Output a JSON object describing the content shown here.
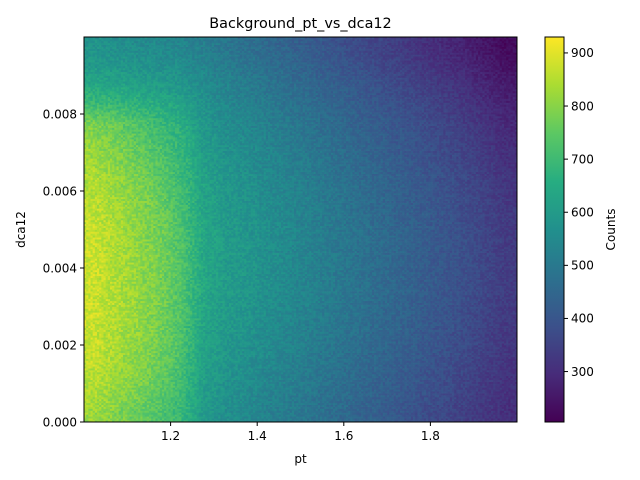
{
  "chart_data": {
    "type": "heatmap",
    "title": "Background_pt_vs_dca12",
    "xlabel": "pt",
    "ylabel": "dca12",
    "xlim": [
      1.0,
      2.0
    ],
    "ylim": [
      0.0,
      0.01
    ],
    "xticks": [
      "1.2",
      "1.4",
      "1.6",
      "1.8"
    ],
    "xtick_values": [
      1.2,
      1.4,
      1.6,
      1.8
    ],
    "yticks": [
      "0.000",
      "0.002",
      "0.004",
      "0.006",
      "0.008"
    ],
    "ytick_values": [
      0.0,
      0.002,
      0.004,
      0.006,
      0.008
    ],
    "colormap": "viridis",
    "colorbar": {
      "label": "Counts",
      "min": 205,
      "max": 930,
      "ticks": [
        "300",
        "400",
        "500",
        "600",
        "700",
        "800",
        "900"
      ],
      "tick_values": [
        300,
        400,
        500,
        600,
        700,
        800,
        900
      ]
    },
    "bins": {
      "x": 200,
      "y": 200
    },
    "x": [
      1.025,
      1.075,
      1.125,
      1.175,
      1.225,
      1.275,
      1.325,
      1.375,
      1.425,
      1.475,
      1.525,
      1.575,
      1.625,
      1.675,
      1.725,
      1.775,
      1.825,
      1.875,
      1.925,
      1.975
    ],
    "y": [
      0.00025,
      0.00075,
      0.00125,
      0.00175,
      0.00225,
      0.00275,
      0.00325,
      0.00375,
      0.00425,
      0.00475,
      0.00525,
      0.00575,
      0.00625,
      0.00675,
      0.00725,
      0.00775,
      0.00825,
      0.00875,
      0.00925,
      0.00975
    ],
    "z": [
      [
        820,
        790,
        760,
        730,
        690,
        600,
        565,
        545,
        525,
        505,
        485,
        465,
        445,
        425,
        405,
        385,
        365,
        345,
        325,
        305
      ],
      [
        840,
        810,
        780,
        745,
        700,
        610,
        575,
        555,
        535,
        515,
        495,
        475,
        455,
        435,
        415,
        395,
        375,
        355,
        330,
        310
      ],
      [
        855,
        825,
        795,
        760,
        710,
        615,
        580,
        560,
        540,
        520,
        500,
        480,
        460,
        440,
        420,
        400,
        380,
        360,
        335,
        315
      ],
      [
        865,
        835,
        805,
        770,
        720,
        625,
        590,
        570,
        550,
        530,
        510,
        490,
        470,
        450,
        430,
        410,
        390,
        370,
        345,
        320
      ],
      [
        870,
        840,
        810,
        775,
        725,
        630,
        595,
        575,
        555,
        535,
        515,
        495,
        475,
        455,
        435,
        415,
        395,
        375,
        350,
        325
      ],
      [
        875,
        845,
        815,
        780,
        730,
        635,
        600,
        580,
        560,
        540,
        520,
        500,
        480,
        460,
        440,
        420,
        400,
        380,
        355,
        330
      ],
      [
        875,
        845,
        815,
        780,
        730,
        640,
        605,
        585,
        565,
        545,
        525,
        505,
        485,
        465,
        445,
        425,
        405,
        385,
        360,
        335
      ],
      [
        875,
        845,
        815,
        780,
        730,
        640,
        605,
        585,
        565,
        545,
        525,
        505,
        485,
        465,
        445,
        425,
        405,
        385,
        360,
        335
      ],
      [
        875,
        845,
        815,
        780,
        730,
        640,
        605,
        585,
        565,
        545,
        525,
        505,
        485,
        465,
        445,
        425,
        405,
        385,
        360,
        335
      ],
      [
        870,
        840,
        810,
        775,
        725,
        640,
        605,
        585,
        565,
        545,
        525,
        505,
        485,
        465,
        445,
        425,
        405,
        385,
        360,
        335
      ],
      [
        865,
        835,
        805,
        770,
        720,
        635,
        600,
        580,
        560,
        540,
        520,
        500,
        480,
        460,
        440,
        420,
        400,
        380,
        355,
        330
      ],
      [
        855,
        825,
        795,
        760,
        710,
        630,
        595,
        575,
        555,
        535,
        515,
        495,
        475,
        455,
        435,
        415,
        395,
        375,
        350,
        325
      ],
      [
        845,
        815,
        785,
        750,
        700,
        625,
        590,
        570,
        550,
        530,
        510,
        490,
        470,
        450,
        430,
        410,
        390,
        370,
        345,
        320
      ],
      [
        830,
        800,
        770,
        735,
        690,
        615,
        580,
        560,
        540,
        520,
        500,
        480,
        460,
        440,
        420,
        400,
        380,
        360,
        335,
        310
      ],
      [
        810,
        780,
        750,
        715,
        675,
        605,
        570,
        550,
        530,
        510,
        490,
        470,
        450,
        430,
        410,
        390,
        370,
        350,
        325,
        300
      ],
      [
        780,
        755,
        725,
        695,
        660,
        590,
        560,
        540,
        520,
        500,
        480,
        460,
        440,
        420,
        400,
        380,
        360,
        340,
        315,
        290
      ],
      [
        700,
        690,
        670,
        650,
        625,
        575,
        545,
        525,
        505,
        485,
        465,
        445,
        425,
        405,
        385,
        365,
        345,
        325,
        300,
        275
      ],
      [
        640,
        630,
        615,
        600,
        585,
        555,
        530,
        510,
        490,
        470,
        450,
        430,
        410,
        390,
        370,
        350,
        330,
        310,
        285,
        260
      ],
      [
        600,
        590,
        580,
        570,
        560,
        535,
        510,
        490,
        470,
        450,
        430,
        410,
        390,
        370,
        350,
        330,
        310,
        290,
        265,
        240
      ],
      [
        575,
        565,
        555,
        545,
        535,
        515,
        495,
        475,
        455,
        435,
        415,
        395,
        375,
        355,
        335,
        315,
        295,
        275,
        250,
        225
      ]
    ]
  }
}
